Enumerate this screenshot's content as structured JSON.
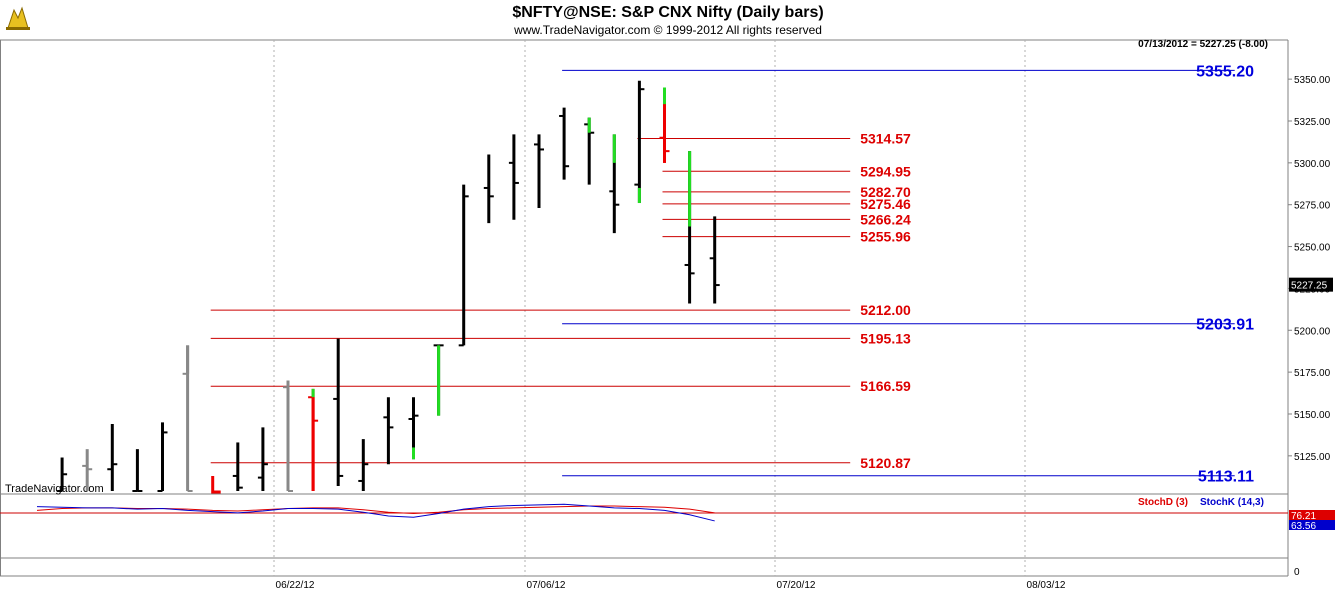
{
  "header": {
    "title": "$NFTY@NSE:  S&P CNX Nifty  (Daily bars)",
    "copyright": "www.TradeNavigator.com © 1999-2012 All rights reserved",
    "quote": "07/13/2012 = 5227.25 (-8.00)",
    "watermark": "TradeNavigator.com"
  },
  "chart_data": [
    {
      "type": "ohlc",
      "title": "$NFTY@NSE:  S&P CNX Nifty  (Daily bars)",
      "ylim": [
        5104,
        5368
      ],
      "y_ticks": [
        "5350.00",
        "5325.00",
        "5300.00",
        "5275.00",
        "5250.00",
        "5225.00",
        "5200.00",
        "5175.00",
        "5150.00",
        "5125.00"
      ],
      "y_tick_values": [
        5350,
        5325,
        5300,
        5275,
        5250,
        5225,
        5200,
        5175,
        5150,
        5125
      ],
      "x_tick_labels": [
        "06/22/12",
        "07/06/12",
        "07/20/12",
        "08/03/12"
      ],
      "last_value_label": "5227.25",
      "last_value": 5227.25,
      "colors": {
        "up": "#000000",
        "pivot": "#888888",
        "red_bar": "#ee0000",
        "green_bar": "#22dd22",
        "red_level": "#cc0000",
        "blue_level": "#0000cc",
        "grid": "#b0b0b0"
      },
      "bars": [
        {
          "x": 1,
          "high": 5124,
          "low": 5104,
          "open": 5104,
          "close": 5114,
          "color": "#000000"
        },
        {
          "x": 2,
          "high": 5129,
          "low": 5104,
          "open": 5119,
          "close": 5117,
          "color": "#888888"
        },
        {
          "x": 3,
          "high": 5144,
          "low": 5104,
          "open": 5117,
          "close": 5120,
          "color": "#000000"
        },
        {
          "x": 4,
          "high": 5129,
          "low": 5104,
          "open": 5104,
          "close": 5104,
          "color": "#000000"
        },
        {
          "x": 5,
          "high": 5145,
          "low": 5104,
          "open": 5104,
          "close": 5139,
          "color": "#000000"
        },
        {
          "x": 6,
          "high": 5191,
          "low": 5104,
          "open": 5174,
          "close": 5104,
          "color": "#888888"
        },
        {
          "x": 8,
          "high": 5133,
          "low": 5104,
          "open": 5113,
          "close": 5106,
          "color": "#000000"
        },
        {
          "x": 9,
          "high": 5142,
          "low": 5104,
          "open": 5112,
          "close": 5120,
          "color": "#000000"
        },
        {
          "x": 10,
          "high": 5170,
          "low": 5104,
          "open": 5166,
          "close": 5104,
          "color": "#888888"
        },
        {
          "x": 11,
          "high": 5165,
          "low": 5104,
          "open": 5160,
          "close": 5146,
          "color": "#ee0000"
        },
        {
          "x": 12,
          "high": 5195,
          "low": 5107,
          "open": 5159,
          "close": 5113,
          "color": "#000000"
        },
        {
          "x": 13,
          "high": 5135,
          "low": 5104,
          "open": 5110,
          "close": 5120,
          "color": "#000000"
        },
        {
          "x": 14,
          "high": 5160,
          "low": 5120,
          "open": 5148,
          "close": 5142,
          "color": "#000000"
        },
        {
          "x": 15,
          "high": 5160,
          "low": 5123,
          "open": 5147,
          "close": 5149,
          "color": "#000000"
        },
        {
          "x": 16,
          "high": 5191,
          "low": 5149,
          "open": 5191,
          "close": 5191,
          "color": "#000000"
        },
        {
          "x": 17,
          "high": 5287,
          "low": 5191,
          "open": 5191,
          "close": 5280,
          "color": "#000000"
        },
        {
          "x": 18,
          "high": 5305,
          "low": 5264,
          "open": 5285,
          "close": 5280,
          "color": "#000000"
        },
        {
          "x": 19,
          "high": 5317,
          "low": 5266,
          "open": 5300,
          "close": 5288,
          "color": "#000000"
        },
        {
          "x": 20,
          "high": 5317,
          "low": 5273,
          "open": 5311,
          "close": 5308,
          "color": "#000000"
        },
        {
          "x": 21,
          "high": 5333,
          "low": 5290,
          "open": 5328,
          "close": 5298,
          "color": "#000000"
        },
        {
          "x": 22,
          "high": 5327,
          "low": 5287,
          "open": 5323,
          "close": 5318,
          "color": "#000000"
        },
        {
          "x": 23,
          "high": 5317,
          "low": 5258,
          "open": 5283,
          "close": 5275,
          "color": "#000000"
        },
        {
          "x": 24,
          "high": 5349,
          "low": 5276,
          "open": 5287,
          "close": 5344,
          "color": "#000000"
        },
        {
          "x": 25,
          "high": 5345,
          "low": 5300,
          "open": 5315,
          "close": 5307,
          "color": "#ee0000"
        },
        {
          "x": 26,
          "high": 5307,
          "low": 5216,
          "open": 5239,
          "close": 5234,
          "color": "#000000"
        },
        {
          "x": 27,
          "high": 5268,
          "low": 5216,
          "open": 5243,
          "close": 5227,
          "color": "#000000"
        }
      ],
      "colored_segments": [
        {
          "x": 6,
          "from": 5174,
          "to": 5191,
          "color": "#888888"
        },
        {
          "x": 11,
          "from": 5160,
          "to": 5165,
          "color": "#22dd22"
        },
        {
          "x": 11,
          "from": 5104,
          "to": 5160,
          "color": "#ee0000"
        },
        {
          "x": 15,
          "from": 5123,
          "to": 5130,
          "color": "#22dd22"
        },
        {
          "x": 16,
          "from": 5149,
          "to": 5191,
          "color": "#22dd22"
        },
        {
          "x": 22,
          "from": 5318,
          "to": 5327,
          "color": "#22dd22"
        },
        {
          "x": 23,
          "from": 5300,
          "to": 5317,
          "color": "#22dd22"
        },
        {
          "x": 24,
          "from": 5276,
          "to": 5285,
          "color": "#22dd22"
        },
        {
          "x": 25,
          "from": 5335,
          "to": 5345,
          "color": "#22dd22"
        },
        {
          "x": 25,
          "from": 5300,
          "to": 5335,
          "color": "#ee0000"
        },
        {
          "x": 26,
          "from": 5262,
          "to": 5307,
          "color": "#22dd22"
        }
      ],
      "red_levels": [
        {
          "label": "5314.57",
          "value": 5314.57,
          "from": 24,
          "to": 32
        },
        {
          "label": "5294.95",
          "value": 5294.95,
          "from": 25,
          "to": 32
        },
        {
          "label": "5282.70",
          "value": 5282.7,
          "from": 25,
          "to": 32
        },
        {
          "label": "5275.46",
          "value": 5275.46,
          "from": 25,
          "to": 32
        },
        {
          "label": "5266.24",
          "value": 5266.24,
          "from": 25,
          "to": 32
        },
        {
          "label": "5255.96",
          "value": 5255.96,
          "from": 25,
          "to": 32
        },
        {
          "label": "5212.00",
          "value": 5212.0,
          "from": 7,
          "to": 32
        },
        {
          "label": "5195.13",
          "value": 5195.13,
          "from": 7,
          "to": 32
        },
        {
          "label": "5166.59",
          "value": 5166.59,
          "from": 7,
          "to": 32
        },
        {
          "label": "5120.87",
          "value": 5120.87,
          "from": 7,
          "to": 32
        }
      ],
      "blue_levels": [
        {
          "label": "5355.20",
          "value": 5355.2,
          "from": 21,
          "to": 47
        },
        {
          "label": "5203.91",
          "value": 5203.91,
          "from": 21,
          "to": 47
        },
        {
          "label": "5113.11",
          "value": 5113.11,
          "from": 21,
          "to": 47
        }
      ]
    },
    {
      "type": "line",
      "legend": [
        "StochD (3)",
        "StochK (14,3)"
      ],
      "ylim": [
        0,
        100
      ],
      "y_ticks": [
        "0"
      ],
      "value_labels": [
        "76.21",
        "63.56"
      ],
      "series": [
        {
          "name": "StochD (3)",
          "color": "#dd0000",
          "x": [
            0,
            1,
            2,
            3,
            4,
            5,
            6,
            7,
            8,
            9,
            10,
            11,
            12,
            13,
            14,
            15,
            16,
            17,
            18,
            19,
            20,
            21,
            22,
            23,
            24,
            25,
            26,
            27
          ],
          "values": [
            80,
            83,
            84,
            84,
            83,
            83,
            82,
            80,
            79,
            81,
            83,
            84,
            84,
            81,
            77,
            75,
            77,
            81,
            83,
            84,
            85,
            86,
            87,
            87,
            86,
            85,
            82,
            76
          ]
        },
        {
          "name": "StochK (14,3)",
          "color": "#0000cc",
          "x": [
            0,
            1,
            2,
            3,
            4,
            5,
            6,
            7,
            8,
            9,
            10,
            11,
            12,
            13,
            14,
            15,
            16,
            17,
            18,
            19,
            20,
            21,
            22,
            23,
            24,
            25,
            26,
            27
          ],
          "values": [
            86,
            85,
            84,
            84,
            82,
            83,
            80,
            78,
            76,
            79,
            83,
            83,
            82,
            77,
            71,
            69,
            75,
            82,
            86,
            88,
            89,
            90,
            87,
            84,
            83,
            80,
            73,
            63
          ]
        }
      ]
    }
  ]
}
